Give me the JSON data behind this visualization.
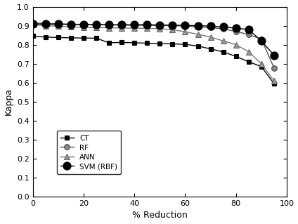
{
  "x": [
    0,
    5,
    10,
    15,
    20,
    25,
    30,
    35,
    40,
    45,
    50,
    55,
    60,
    65,
    70,
    75,
    80,
    85,
    90,
    95,
    98
  ],
  "CT": [
    0.845,
    0.84,
    0.838,
    0.836,
    0.835,
    0.834,
    0.81,
    0.812,
    0.81,
    0.808,
    0.806,
    0.804,
    0.802,
    0.793,
    0.778,
    0.762,
    0.738,
    0.71,
    0.685,
    0.595,
    null
  ],
  "RF": [
    0.915,
    0.912,
    0.91,
    0.908,
    0.907,
    0.906,
    0.904,
    0.903,
    0.902,
    0.902,
    0.901,
    0.9,
    0.898,
    0.894,
    0.89,
    0.883,
    0.87,
    0.853,
    0.83,
    0.678,
    null
  ],
  "ANN": [
    0.905,
    0.9,
    0.897,
    0.894,
    0.891,
    0.89,
    0.889,
    0.888,
    0.887,
    0.886,
    0.884,
    0.879,
    0.868,
    0.855,
    0.84,
    0.82,
    0.8,
    0.763,
    0.7,
    0.61,
    null
  ],
  "SVM": [
    0.91,
    0.908,
    0.908,
    0.907,
    0.906,
    0.906,
    0.905,
    0.905,
    0.905,
    0.905,
    0.904,
    0.903,
    0.902,
    0.9,
    0.898,
    0.893,
    0.887,
    0.88,
    0.82,
    0.745,
    null
  ],
  "CT_line_color": "#000000",
  "RF_line_color": "#555555",
  "ANN_line_color": "#777777",
  "SVM_line_color": "#000000",
  "CT_marker_face": "#000000",
  "CT_marker_edge": "#000000",
  "RF_marker_face": "#888888",
  "RF_marker_edge": "#444444",
  "ANN_marker_face": "#999999",
  "ANN_marker_edge": "#666666",
  "SVM_marker_face": "#000000",
  "SVM_marker_edge": "#000000",
  "ylabel": "Kappa",
  "xlabel": "% Reduction",
  "ylim": [
    0.0,
    1.0
  ],
  "xlim": [
    0,
    100
  ],
  "yticks": [
    0.0,
    0.1,
    0.2,
    0.3,
    0.4,
    0.5,
    0.6,
    0.7,
    0.8,
    0.9,
    1.0
  ],
  "xticks": [
    0,
    20,
    40,
    60,
    80,
    100
  ],
  "figsize": [
    4.24,
    3.19
  ],
  "dpi": 100
}
